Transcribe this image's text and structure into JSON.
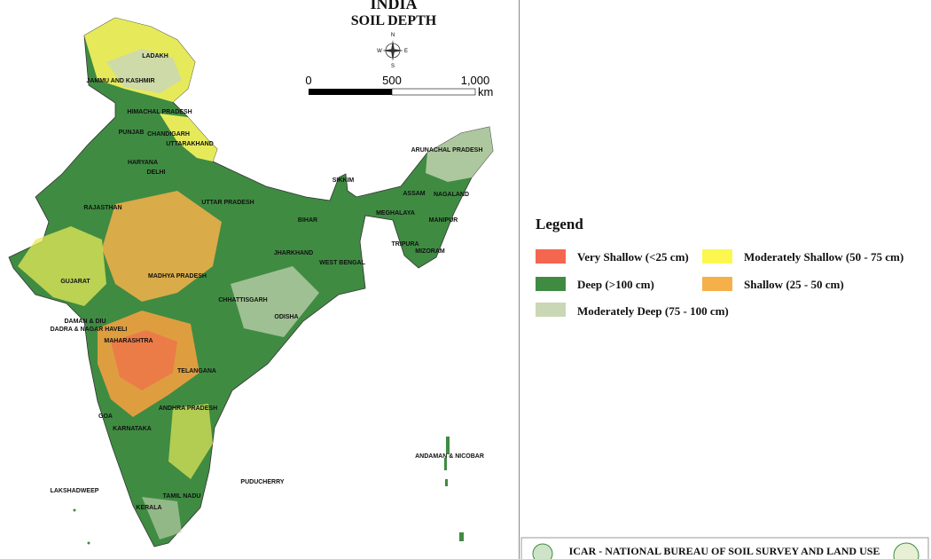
{
  "map": {
    "title": "INDIA",
    "subtitle": "SOIL DEPTH",
    "compass": {
      "n": "N",
      "s": "S",
      "e": "E",
      "w": "W"
    },
    "scale": {
      "labels": [
        "0",
        "500",
        "1,000"
      ],
      "unit": "km"
    },
    "labels": [
      "LADAKH",
      "JAMMU AND KASHMIR",
      "HIMACHAL PRADESH",
      "PUNJAB",
      "CHANDIGARH",
      "UTTARAKHAND",
      "HARYANA",
      "DELHI",
      "RAJASTHAN",
      "UTTAR PRADESH",
      "BIHAR",
      "SIKKIM",
      "ARUNACHAL PRADESH",
      "ASSAM",
      "NAGALAND",
      "MEGHALAYA",
      "MANIPUR",
      "TRIPURA",
      "MIZORAM",
      "JHARKHAND",
      "WEST BENGAL",
      "GUJARAT",
      "MADHYA PRADESH",
      "CHHATTISGARH",
      "ODISHA",
      "DAMAN & DIU",
      "DADRA & NAGAR HAVELI",
      "MAHARASHTRA",
      "TELANGANA",
      "ANDHRA PRADESH",
      "GOA",
      "KARNATAKA",
      "ANDAMAN & NICOBAR",
      "PUDUCHERRY",
      "LAKSHADWEEP",
      "TAMIL NADU",
      "KERALA"
    ]
  },
  "legend": {
    "title": "Legend",
    "items": [
      {
        "label": "Very Shallow (<25 cm)",
        "color": "#f4664f"
      },
      {
        "label": "Moderately Shallow (50 - 75 cm)",
        "color": "#fbf74e"
      },
      {
        "label": "Deep (>100 cm)",
        "color": "#3f8b42"
      },
      {
        "label": "Shallow (25 - 50 cm)",
        "color": "#f5b04a"
      },
      {
        "label": "Moderately Deep (75 - 100 cm)",
        "color": "#c9d7b5"
      }
    ]
  },
  "footer": {
    "text": "ICAR - NATIONAL BUREAU OF SOIL SURVEY AND LAND USE"
  }
}
